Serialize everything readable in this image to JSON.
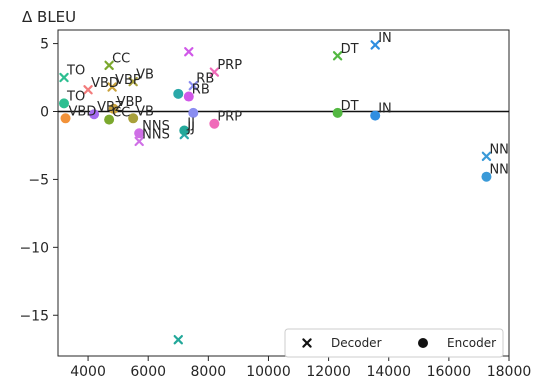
{
  "chart_data": {
    "type": "scatter",
    "title": "Δ BLEU",
    "xlabel": "",
    "ylabel": "",
    "xlim": [
      3000,
      18000
    ],
    "ylim": [
      -18,
      6
    ],
    "xticks": [
      4000,
      6000,
      8000,
      10000,
      12000,
      14000,
      16000,
      18000
    ],
    "yticks": [
      5,
      0,
      -5,
      -10,
      -15
    ],
    "reference_line_y": 0,
    "grid": false,
    "legend": {
      "location": "bottom-right",
      "entries": [
        {
          "label": "Decoder",
          "marker": "x"
        },
        {
          "label": "Encoder",
          "marker": "circle"
        }
      ]
    },
    "series": [
      {
        "name": "Decoder",
        "marker": "x",
        "points": [
          {
            "label": "TO",
            "x": 3200,
            "y": 2.5,
            "color": "#2ebf91"
          },
          {
            "label": "VBD",
            "x": 4000,
            "y": 1.6,
            "color": "#f27b7b"
          },
          {
            "label": "VBP",
            "x": 4800,
            "y": 1.8,
            "color": "#c9a23c"
          },
          {
            "label": "CC",
            "x": 4700,
            "y": 3.4,
            "color": "#7ba82d"
          },
          {
            "label": "VB",
            "x": 5500,
            "y": 2.2,
            "color": "#a8a03a"
          },
          {
            "label": "NNS",
            "x": 5700,
            "y": -2.2,
            "color": "#cf6fe6"
          },
          {
            "label": "",
            "x": 7350,
            "y": 4.4,
            "color": "#d058e8"
          },
          {
            "label": "RB",
            "x": 7500,
            "y": 1.9,
            "color": "#8a8df0"
          },
          {
            "label": "PRP",
            "x": 8200,
            "y": 2.9,
            "color": "#f06ab9"
          },
          {
            "label": "JJ",
            "x": 7200,
            "y": -1.7,
            "color": "#2aa8a8"
          },
          {
            "label": "",
            "x": 7000,
            "y": -16.8,
            "color": "#23a89a"
          },
          {
            "label": "DT",
            "x": 12300,
            "y": 4.1,
            "color": "#53b842"
          },
          {
            "label": "IN",
            "x": 13550,
            "y": 4.9,
            "color": "#2f8ee0"
          },
          {
            "label": "NN",
            "x": 17250,
            "y": -3.3,
            "color": "#3a9ad8"
          }
        ]
      },
      {
        "name": "Encoder",
        "marker": "circle",
        "points": [
          {
            "label": "TO",
            "x": 3200,
            "y": 0.6,
            "color": "#2ebf91"
          },
          {
            "label": "VBD",
            "x": 3250,
            "y": -0.5,
            "color": "#f29239"
          },
          {
            "label": "VBZ",
            "x": 4200,
            "y": -0.2,
            "color": "#a56bf0"
          },
          {
            "label": "VBP",
            "x": 4850,
            "y": 0.2,
            "color": "#c9a23c"
          },
          {
            "label": "CC",
            "x": 4700,
            "y": -0.6,
            "color": "#7ba82d"
          },
          {
            "label": "VB",
            "x": 5500,
            "y": -0.5,
            "color": "#a8a03a"
          },
          {
            "label": "NNS",
            "x": 5700,
            "y": -1.6,
            "color": "#cf6fe6"
          },
          {
            "label": "",
            "x": 7000,
            "y": 1.3,
            "color": "#2aa8a8"
          },
          {
            "label": "RB",
            "x": 7350,
            "y": 1.1,
            "color": "#d058e8"
          },
          {
            "label": "",
            "x": 7500,
            "y": -0.1,
            "color": "#8a8df0"
          },
          {
            "label": "JJ",
            "x": 7200,
            "y": -1.4,
            "color": "#23a89a"
          },
          {
            "label": "PRP",
            "x": 8200,
            "y": -0.9,
            "color": "#f06ab9"
          },
          {
            "label": "DT",
            "x": 12300,
            "y": -0.1,
            "color": "#53b842"
          },
          {
            "label": "IN",
            "x": 13550,
            "y": -0.3,
            "color": "#2f8ee0"
          },
          {
            "label": "NN",
            "x": 17250,
            "y": -4.8,
            "color": "#3a9ad8"
          }
        ]
      }
    ]
  }
}
